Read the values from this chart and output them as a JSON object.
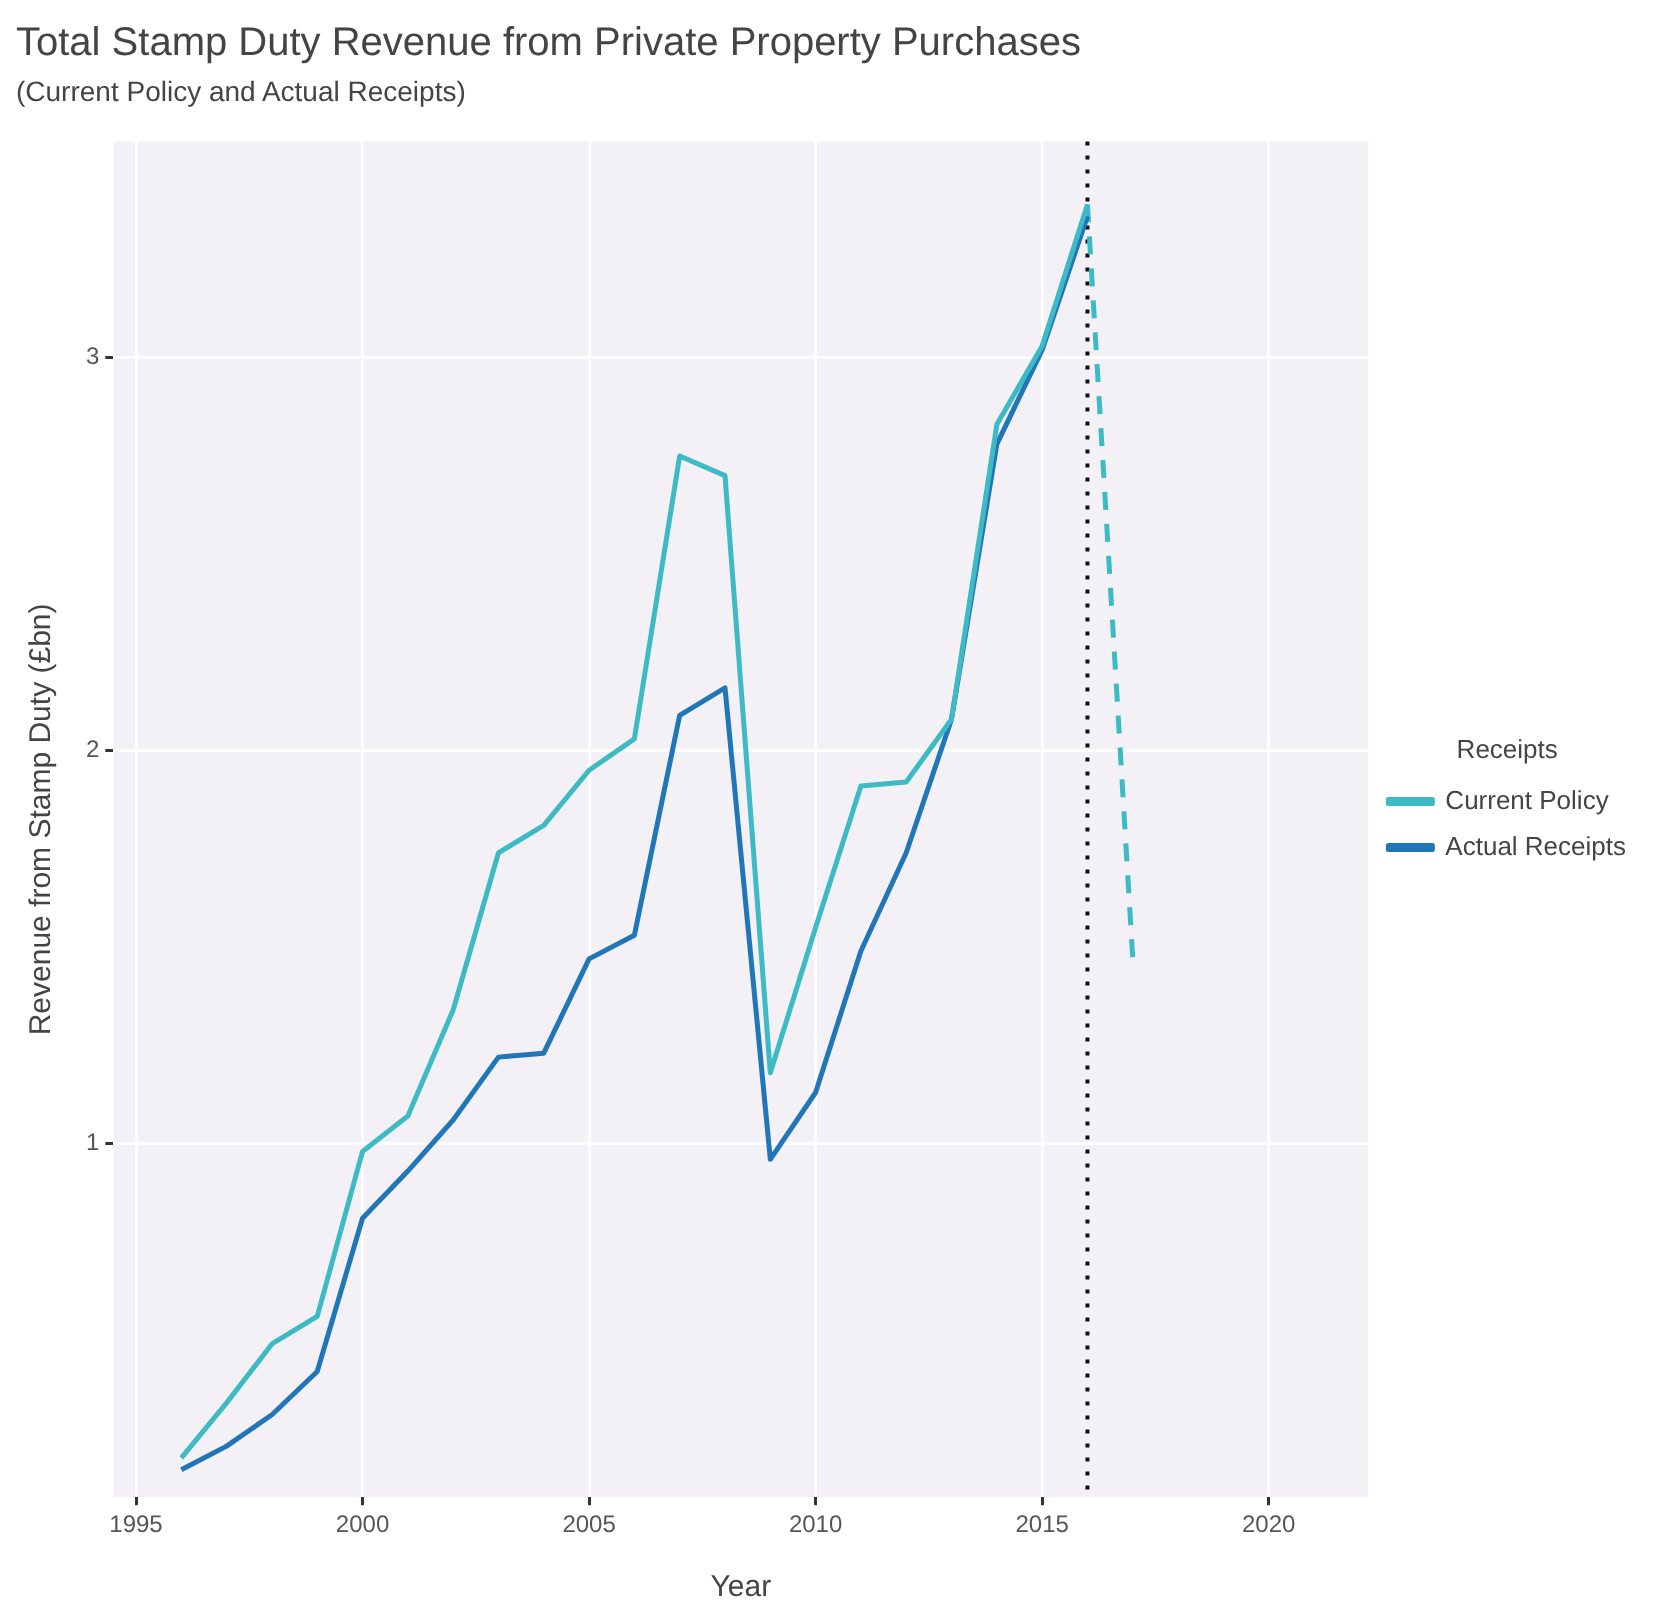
{
  "chart_data": {
    "type": "line",
    "title": "Total Stamp Duty Revenue from Private Property Purchases",
    "subtitle": "(Current Policy and Actual Receipts)",
    "xlabel": "Year",
    "ylabel": "Revenue from Stamp Duty (£bn)",
    "legend_title": "Receipts",
    "x": [
      1996,
      1997,
      1998,
      1999,
      2000,
      2001,
      2002,
      2003,
      2004,
      2005,
      2006,
      2007,
      2008,
      2009,
      2010,
      2011,
      2012,
      2013,
      2014,
      2015,
      2016
    ],
    "series": [
      {
        "name": "Current Policy",
        "color": "#3dbac4",
        "values": [
          0.2,
          0.34,
          0.49,
          0.56,
          0.98,
          1.07,
          1.34,
          1.74,
          1.81,
          1.95,
          2.03,
          2.75,
          2.7,
          1.18,
          1.55,
          1.91,
          1.92,
          2.08,
          2.83,
          3.03,
          3.39
        ]
      },
      {
        "name": "Actual Receipts",
        "color": "#2176b8",
        "values": [
          0.17,
          0.23,
          0.31,
          0.42,
          0.81,
          0.93,
          1.06,
          1.22,
          1.23,
          1.47,
          1.53,
          2.09,
          2.16,
          0.96,
          1.13,
          1.49,
          1.74,
          2.08,
          2.78,
          3.02,
          3.36
        ]
      },
      {
        "color": "#3dbac4",
        "x": [
          2016,
          2017
        ],
        "values": [
          3.39,
          1.47
        ],
        "line_style": "dashed"
      }
    ],
    "xlim": [
      1994.5,
      2022.2
    ],
    "xticks": [
      1995,
      2000,
      2005,
      2010,
      2015,
      2020
    ],
    "ylim": [
      0.1,
      3.55
    ],
    "yticks": [
      1,
      2,
      3
    ],
    "ref_lines": [
      {
        "axis": "x",
        "value": 2016,
        "color": "#111111",
        "line_style": "dotted"
      }
    ],
    "grid": true,
    "legend": "right",
    "marker": "none",
    "line_style": "solid"
  }
}
